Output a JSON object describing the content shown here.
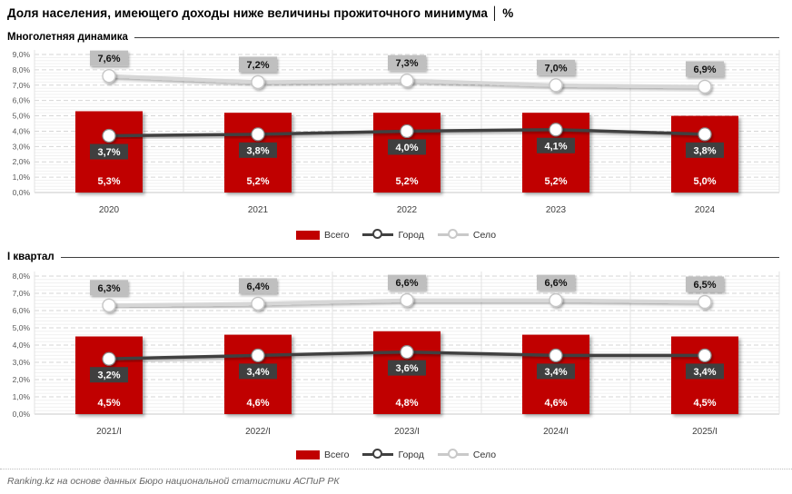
{
  "page": {
    "title": "Доля населения, имеющего доходы ниже величины прожиточного минимума │ %",
    "footer": "Ranking.kz на основе данных Бюро национальной статистики АСПиР РК"
  },
  "legend": {
    "total": "Всего",
    "city": "Город",
    "village": "Село"
  },
  "colors": {
    "total_bar": "#C00000",
    "city_line": "#404040",
    "village_line": "#D7D7D7",
    "village_legend": "#C9C9C9",
    "city_label_bg": "#3F3F3F",
    "village_label_bg": "#BFBFBF",
    "axis_text": "#595959",
    "grid_major": "#D6D6D6",
    "grid_minor": "#F0F0F0"
  },
  "chart_data": [
    {
      "type": "bar",
      "combo": "bar+line",
      "section_title": "Многолетняя динамика",
      "categories": [
        "2020",
        "2021",
        "2022",
        "2023",
        "2024"
      ],
      "series": [
        {
          "name": "Всего",
          "kind": "bar",
          "label_style": "on-bar",
          "values": [
            5.3,
            5.2,
            5.2,
            5.2,
            5.0
          ],
          "labels": [
            "5,3%",
            "5,2%",
            "5,2%",
            "5,2%",
            "5,0%"
          ]
        },
        {
          "name": "Город",
          "kind": "line",
          "label_style": "dark-box",
          "values": [
            3.7,
            3.8,
            4.0,
            4.1,
            3.8
          ],
          "labels": [
            "3,7%",
            "3,8%",
            "4,0%",
            "4,1%",
            "3,8%"
          ]
        },
        {
          "name": "Село",
          "kind": "line",
          "label_style": "light-box",
          "values": [
            7.6,
            7.2,
            7.3,
            7.0,
            6.9
          ],
          "labels": [
            "7,6%",
            "7,2%",
            "7,3%",
            "7,0%",
            "6,9%"
          ]
        }
      ],
      "ylim": [
        0,
        9
      ],
      "ytick_step": 1,
      "ytick_labels": [
        "0,0%",
        "1,0%",
        "2,0%",
        "3,0%",
        "4,0%",
        "5,0%",
        "6,0%",
        "7,0%",
        "8,0%",
        "9,0%"
      ],
      "grid": "horizontal dashed major + light minor + vertical category separators",
      "legend_position": "bottom-center"
    },
    {
      "type": "bar",
      "combo": "bar+line",
      "section_title": "I квартал",
      "categories": [
        "2021/I",
        "2022/I",
        "2023/I",
        "2024/I",
        "2025/I"
      ],
      "series": [
        {
          "name": "Всего",
          "kind": "bar",
          "label_style": "on-bar",
          "values": [
            4.5,
            4.6,
            4.8,
            4.6,
            4.5
          ],
          "labels": [
            "4,5%",
            "4,6%",
            "4,8%",
            "4,6%",
            "4,5%"
          ]
        },
        {
          "name": "Город",
          "kind": "line",
          "label_style": "dark-box",
          "values": [
            3.2,
            3.4,
            3.6,
            3.4,
            3.4
          ],
          "labels": [
            "3,2%",
            "3,4%",
            "3,6%",
            "3,4%",
            "3,4%"
          ]
        },
        {
          "name": "Село",
          "kind": "line",
          "label_style": "light-box",
          "values": [
            6.3,
            6.4,
            6.6,
            6.6,
            6.5
          ],
          "labels": [
            "6,3%",
            "6,4%",
            "6,6%",
            "6,6%",
            "6,5%"
          ]
        }
      ],
      "ylim": [
        0,
        8
      ],
      "ytick_step": 1,
      "ytick_labels": [
        "0,0%",
        "1,0%",
        "2,0%",
        "3,0%",
        "4,0%",
        "5,0%",
        "6,0%",
        "7,0%",
        "8,0%"
      ],
      "grid": "horizontal dashed major + light minor + vertical category separators",
      "legend_position": "bottom-center"
    }
  ]
}
